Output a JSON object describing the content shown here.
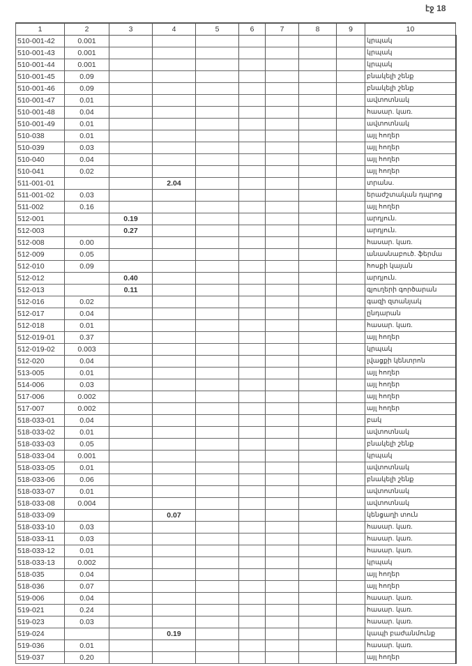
{
  "page_label": "էջ 18",
  "columns": [
    "1",
    "2",
    "3",
    "4",
    "5",
    "6",
    "7",
    "8",
    "9",
    "10"
  ],
  "rows": [
    {
      "code": "510-001-42",
      "c2": "0.001",
      "c3": "",
      "c4": "",
      "c10": "կրպակ"
    },
    {
      "code": "510-001-43",
      "c2": "0.001",
      "c3": "",
      "c4": "",
      "c10": "կրպակ"
    },
    {
      "code": "510-001-44",
      "c2": "0.001",
      "c3": "",
      "c4": "",
      "c10": "կրպակ"
    },
    {
      "code": "510-001-45",
      "c2": "0.09",
      "c3": "",
      "c4": "",
      "c10": "բնակելի շենք"
    },
    {
      "code": "510-001-46",
      "c2": "0.09",
      "c3": "",
      "c4": "",
      "c10": "բնակելի շենք"
    },
    {
      "code": "510-001-47",
      "c2": "0.01",
      "c3": "",
      "c4": "",
      "c10": "ավտոտնակ"
    },
    {
      "code": "510-001-48",
      "c2": "0.04",
      "c3": "",
      "c4": "",
      "c10": "հասար. կառ."
    },
    {
      "code": "510-001-49",
      "c2": "0.01",
      "c3": "",
      "c4": "",
      "c10": "ավտոտնակ"
    },
    {
      "code": "510-038",
      "c2": "0.01",
      "c3": "",
      "c4": "",
      "c10": "այլ հողեր"
    },
    {
      "code": "510-039",
      "c2": "0.03",
      "c3": "",
      "c4": "",
      "c10": "այլ հողեր"
    },
    {
      "code": "510-040",
      "c2": "0.04",
      "c3": "",
      "c4": "",
      "c10": "այլ հողեր"
    },
    {
      "code": "510-041",
      "c2": "0.02",
      "c3": "",
      "c4": "",
      "c10": "այլ հողեր"
    },
    {
      "code": "511-001-01",
      "c2": "",
      "c3": "",
      "c4": "2.04",
      "c10": "տրանս."
    },
    {
      "code": "511-001-02",
      "c2": "0.03",
      "c3": "",
      "c4": "",
      "c10": "երաժշտական դպրոց"
    },
    {
      "code": "511-002",
      "c2": "0.16",
      "c3": "",
      "c4": "",
      "c10": "այլ հողեր"
    },
    {
      "code": "512-001",
      "c2": "",
      "c3": "0.19",
      "c4": "",
      "c10": "արդյուն."
    },
    {
      "code": "512-003",
      "c2": "",
      "c3": "0.27",
      "c4": "",
      "c10": "արդյուն."
    },
    {
      "code": "512-008",
      "c2": "0.00",
      "c3": "",
      "c4": "",
      "c10": "հասար. կառ."
    },
    {
      "code": "512-009",
      "c2": "0.05",
      "c3": "",
      "c4": "",
      "c10": "անասնաբուծ. ֆերմա"
    },
    {
      "code": "512-010",
      "c2": "0.09",
      "c3": "",
      "c4": "",
      "c10": "հոսքի կայան"
    },
    {
      "code": "512-012",
      "c2": "",
      "c3": "0.40",
      "c4": "",
      "c10": "արդյուն."
    },
    {
      "code": "512-013",
      "c2": "",
      "c3": "0.11",
      "c4": "",
      "c10": "գյուղերի գործարան"
    },
    {
      "code": "512-016",
      "c2": "0.02",
      "c3": "",
      "c4": "",
      "c10": "գազի զտանյակ"
    },
    {
      "code": "512-017",
      "c2": "0.04",
      "c3": "",
      "c4": "",
      "c10": "ընդարան"
    },
    {
      "code": "512-018",
      "c2": "0.01",
      "c3": "",
      "c4": "",
      "c10": "հասար. կառ."
    },
    {
      "code": "512-019-01",
      "c2": "0.37",
      "c3": "",
      "c4": "",
      "c10": "այլ հողեր"
    },
    {
      "code": "512-019-02",
      "c2": "0.003",
      "c3": "",
      "c4": "",
      "c10": "կրպակ"
    },
    {
      "code": "512-020",
      "c2": "0.04",
      "c3": "",
      "c4": "",
      "c10": "լվացքի կենտրոն"
    },
    {
      "code": "513-005",
      "c2": "0.01",
      "c3": "",
      "c4": "",
      "c10": "այլ հողեր"
    },
    {
      "code": "514-006",
      "c2": "0.03",
      "c3": "",
      "c4": "",
      "c10": "այլ հողեր"
    },
    {
      "code": "517-006",
      "c2": "0.002",
      "c3": "",
      "c4": "",
      "c10": "այլ հողեր"
    },
    {
      "code": "517-007",
      "c2": "0.002",
      "c3": "",
      "c4": "",
      "c10": "այլ հողեր"
    },
    {
      "code": "518-033-01",
      "c2": "0.04",
      "c3": "",
      "c4": "",
      "c10": "բակ"
    },
    {
      "code": "518-033-02",
      "c2": "0.01",
      "c3": "",
      "c4": "",
      "c10": "ավտոտնակ"
    },
    {
      "code": "518-033-03",
      "c2": "0.05",
      "c3": "",
      "c4": "",
      "c10": "բնակելի շենք"
    },
    {
      "code": "518-033-04",
      "c2": "0.001",
      "c3": "",
      "c4": "",
      "c10": "կրպակ"
    },
    {
      "code": "518-033-05",
      "c2": "0.01",
      "c3": "",
      "c4": "",
      "c10": "ավտոտնակ"
    },
    {
      "code": "518-033-06",
      "c2": "0.06",
      "c3": "",
      "c4": "",
      "c10": "բնակելի շենք"
    },
    {
      "code": "518-033-07",
      "c2": "0.01",
      "c3": "",
      "c4": "",
      "c10": "ավտոտնակ"
    },
    {
      "code": "518-033-08",
      "c2": "0.004",
      "c3": "",
      "c4": "",
      "c10": "ավտոտնակ"
    },
    {
      "code": "518-033-09",
      "c2": "",
      "c3": "",
      "c4": "0.07",
      "c10": "կենցաղի տուն"
    },
    {
      "code": "518-033-10",
      "c2": "0.03",
      "c3": "",
      "c4": "",
      "c10": "հասար. կառ."
    },
    {
      "code": "518-033-11",
      "c2": "0.03",
      "c3": "",
      "c4": "",
      "c10": "հասար. կառ."
    },
    {
      "code": "518-033-12",
      "c2": "0.01",
      "c3": "",
      "c4": "",
      "c10": "հասար. կառ."
    },
    {
      "code": "518-033-13",
      "c2": "0.002",
      "c3": "",
      "c4": "",
      "c10": "կրպակ"
    },
    {
      "code": "518-035",
      "c2": "0.04",
      "c3": "",
      "c4": "",
      "c10": "այլ հողեր"
    },
    {
      "code": "518-036",
      "c2": "0.07",
      "c3": "",
      "c4": "",
      "c10": "այլ հողեր"
    },
    {
      "code": "519-006",
      "c2": "0.04",
      "c3": "",
      "c4": "",
      "c10": "հասար. կառ."
    },
    {
      "code": "519-021",
      "c2": "0.24",
      "c3": "",
      "c4": "",
      "c10": "հասար. կառ."
    },
    {
      "code": "519-023",
      "c2": "0.03",
      "c3": "",
      "c4": "",
      "c10": "հասար. կառ."
    },
    {
      "code": "519-024",
      "c2": "",
      "c3": "",
      "c4": "0.19",
      "c10": "կապի բաժանմունք"
    },
    {
      "code": "519-036",
      "c2": "0.01",
      "c3": "",
      "c4": "",
      "c10": "հասար. կառ."
    },
    {
      "code": "519-037",
      "c2": "0.20",
      "c3": "",
      "c4": "",
      "c10": "այլ հողեր"
    }
  ]
}
